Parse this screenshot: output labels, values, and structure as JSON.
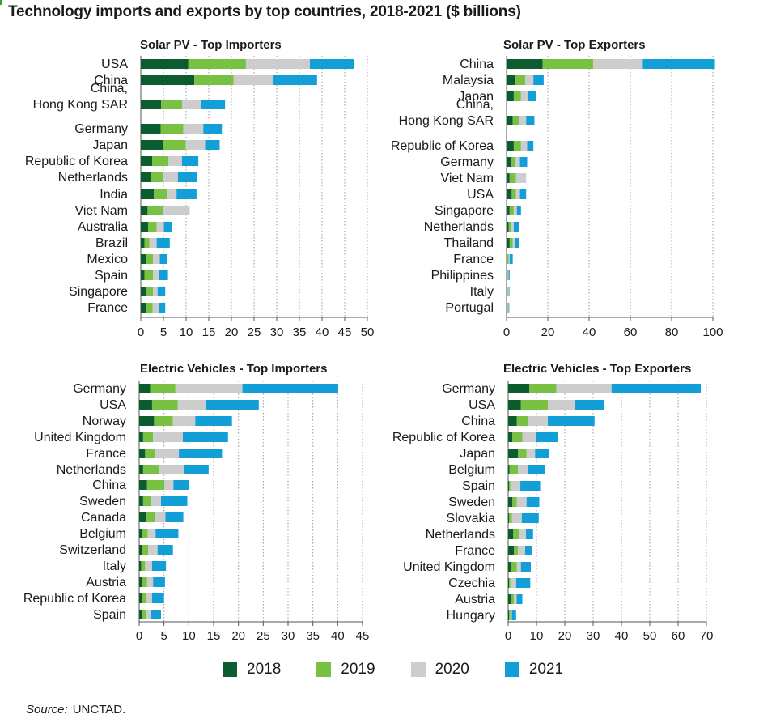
{
  "title": "Technology imports and exports by top countries, 2018-2021 ($ billions)",
  "colors": {
    "2018": "#0b5c2e",
    "2019": "#79c143",
    "2020": "#cdcdcd",
    "2021": "#129fd8"
  },
  "legend": [
    "2018",
    "2019",
    "2020",
    "2021"
  ],
  "source_label": "Source:",
  "source_value": "UNCTAD.",
  "chart_data": [
    {
      "type": "bar",
      "orientation": "horizontal",
      "stacked": true,
      "title": "Solar PV - Top Importers",
      "categories": [
        "USA",
        "China",
        "China,\nHong Kong SAR",
        "Germany",
        "Japan",
        "Republic of Korea",
        "Netherlands",
        "India",
        "Viet Nam",
        "Australia",
        "Brazil",
        "Mexico",
        "Spain",
        "Singapore",
        "France"
      ],
      "series": [
        {
          "name": "2018",
          "values": [
            10.5,
            11.8,
            4.5,
            4.4,
            5.0,
            2.5,
            2.2,
            2.9,
            1.5,
            1.6,
            0.8,
            1.2,
            0.8,
            1.3,
            1.1
          ]
        },
        {
          "name": "2019",
          "values": [
            12.7,
            8.7,
            4.6,
            5.0,
            4.9,
            3.6,
            2.7,
            3.0,
            3.4,
            1.9,
            1.1,
            1.5,
            1.9,
            1.4,
            1.5
          ]
        },
        {
          "name": "2020",
          "values": [
            14.1,
            8.6,
            4.2,
            4.4,
            4.3,
            3.0,
            3.3,
            2.0,
            5.9,
            1.6,
            1.6,
            1.5,
            1.4,
            1.0,
            1.4
          ]
        },
        {
          "name": "2021",
          "values": [
            9.8,
            9.8,
            5.3,
            4.1,
            3.2,
            3.6,
            4.2,
            4.4,
            0.0,
            1.8,
            2.9,
            1.7,
            1.9,
            1.7,
            1.4
          ]
        }
      ],
      "xlim": [
        0,
        50
      ],
      "xticks": [
        0,
        5,
        10,
        15,
        20,
        25,
        30,
        35,
        40,
        45,
        50
      ],
      "grid": true
    },
    {
      "type": "bar",
      "orientation": "horizontal",
      "stacked": true,
      "title": "Solar PV - Top Exporters",
      "categories": [
        "China",
        "Malaysia",
        "Japan",
        "China,\nHong Kong SAR",
        "Republic of Korea",
        "Germany",
        "Viet Nam",
        "USA",
        "Singapore",
        "Netherlands",
        "Thailand",
        "France",
        "Philippines",
        "Italy",
        "Portugal"
      ],
      "series": [
        {
          "name": "2018",
          "values": [
            17.5,
            4.0,
            3.5,
            3.0,
            3.5,
            2.0,
            1.5,
            2.5,
            1.5,
            1.0,
            1.5,
            0.5,
            0.3,
            0.3,
            0.3
          ]
        },
        {
          "name": "2019",
          "values": [
            24.5,
            5.0,
            3.5,
            3.0,
            3.5,
            2.0,
            3.0,
            2.0,
            2.0,
            1.0,
            1.5,
            0.5,
            0.4,
            0.3,
            0.3
          ]
        },
        {
          "name": "2020",
          "values": [
            24.0,
            4.0,
            3.5,
            3.5,
            3.0,
            2.5,
            5.0,
            2.0,
            1.5,
            1.5,
            1.0,
            0.5,
            0.3,
            0.5,
            0.4
          ]
        },
        {
          "name": "2021",
          "values": [
            35.0,
            5.0,
            4.0,
            4.0,
            3.0,
            3.5,
            0.0,
            3.0,
            2.0,
            2.5,
            2.0,
            1.5,
            0.5,
            0.3,
            0.3
          ]
        }
      ],
      "xlim": [
        0,
        100
      ],
      "xticks": [
        0,
        20,
        40,
        60,
        80,
        100
      ],
      "grid": true
    },
    {
      "type": "bar",
      "orientation": "horizontal",
      "stacked": true,
      "title": "Electric Vehicles - Top Importers",
      "categories": [
        "Germany",
        "USA",
        "Norway",
        "United Kingdom",
        "France",
        "Netherlands",
        "China",
        "Sweden",
        "Canada",
        "Belgium",
        "Switzerland",
        "Italy",
        "Austria",
        "Republic of Korea",
        "Spain"
      ],
      "series": [
        {
          "name": "2018",
          "values": [
            2.2,
            2.6,
            3.0,
            0.8,
            1.2,
            0.8,
            1.6,
            0.8,
            1.4,
            0.6,
            0.6,
            0.4,
            0.6,
            0.6,
            0.6
          ]
        },
        {
          "name": "2019",
          "values": [
            5.1,
            5.2,
            3.8,
            2.0,
            2.0,
            3.2,
            3.5,
            1.6,
            1.7,
            1.1,
            1.2,
            0.8,
            1.0,
            0.8,
            0.8
          ]
        },
        {
          "name": "2020",
          "values": [
            13.5,
            5.6,
            4.5,
            6.0,
            4.8,
            5.0,
            1.8,
            2.0,
            2.2,
            1.6,
            1.9,
            1.4,
            1.2,
            1.2,
            1.0
          ]
        },
        {
          "name": "2021",
          "values": [
            19.3,
            10.7,
            7.4,
            9.1,
            8.7,
            5.0,
            3.2,
            5.3,
            3.6,
            4.6,
            3.1,
            2.8,
            2.4,
            2.4,
            2.0
          ]
        }
      ],
      "xlim": [
        0,
        45
      ],
      "xticks": [
        0,
        5,
        10,
        15,
        20,
        25,
        30,
        35,
        40,
        45
      ],
      "grid": true
    },
    {
      "type": "bar",
      "orientation": "horizontal",
      "stacked": true,
      "title": "Electric Vehicles - Top Exporters",
      "categories": [
        "Germany",
        "USA",
        "China",
        "Republic of Korea",
        "Japan",
        "Belgium",
        "Spain",
        "Sweden",
        "Slovakia",
        "Netherlands",
        "France",
        "United Kingdom",
        "Czechia",
        "Austria",
        "Hungary"
      ],
      "series": [
        {
          "name": "2018",
          "values": [
            7.5,
            4.5,
            3.0,
            1.5,
            3.5,
            0.5,
            0.3,
            1.5,
            0.3,
            1.8,
            2.0,
            1.0,
            0.3,
            1.0,
            0.3
          ]
        },
        {
          "name": "2019",
          "values": [
            9.5,
            9.5,
            4.0,
            3.5,
            3.0,
            3.0,
            0.5,
            1.5,
            1.0,
            2.0,
            1.5,
            2.0,
            0.5,
            1.0,
            0.5
          ]
        },
        {
          "name": "2020",
          "values": [
            19.5,
            9.5,
            7.0,
            5.0,
            3.0,
            3.5,
            3.5,
            3.5,
            3.5,
            2.5,
            2.5,
            1.5,
            2.0,
            1.0,
            0.5
          ]
        },
        {
          "name": "2021",
          "values": [
            31.5,
            10.5,
            16.5,
            7.5,
            5.0,
            6.0,
            7.0,
            4.5,
            6.0,
            2.5,
            2.5,
            3.5,
            5.0,
            2.0,
            1.5
          ]
        }
      ],
      "xlim": [
        0,
        70
      ],
      "xticks": [
        0,
        10,
        20,
        30,
        40,
        50,
        60,
        70
      ],
      "grid": true
    }
  ]
}
